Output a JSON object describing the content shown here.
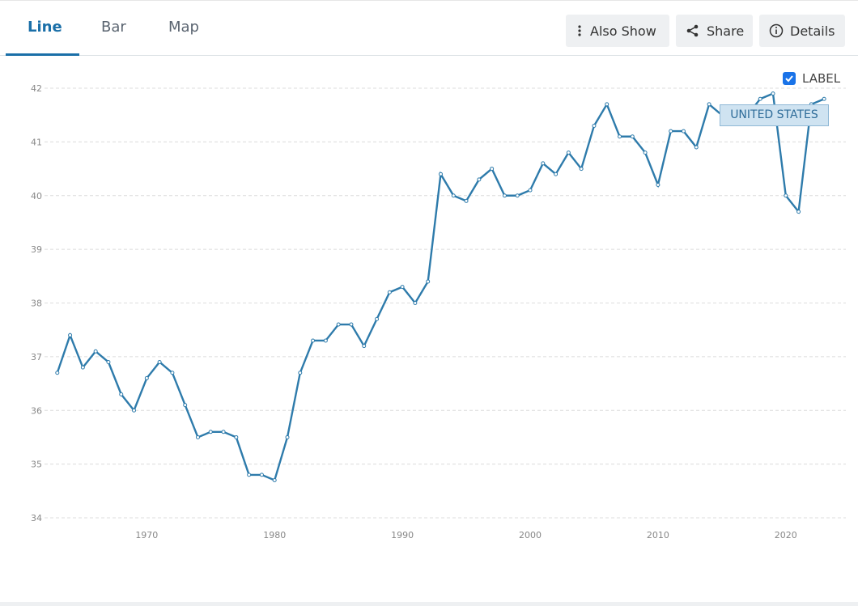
{
  "ui": {
    "tabs": [
      "Line",
      "Bar",
      "Map"
    ],
    "buttons": [
      "Also Show",
      "Share",
      "Details"
    ],
    "label_toggle": "LABEL"
  },
  "chart_data": {
    "type": "line",
    "x": [
      1963,
      1964,
      1965,
      1966,
      1967,
      1968,
      1969,
      1970,
      1971,
      1972,
      1973,
      1974,
      1975,
      1976,
      1977,
      1978,
      1979,
      1980,
      1981,
      1982,
      1983,
      1984,
      1985,
      1986,
      1987,
      1988,
      1989,
      1990,
      1991,
      1992,
      1993,
      1994,
      1995,
      1996,
      1997,
      1998,
      1999,
      2000,
      2001,
      2002,
      2003,
      2004,
      2005,
      2006,
      2007,
      2008,
      2009,
      2010,
      2011,
      2012,
      2013,
      2014,
      2015,
      2016,
      2017,
      2018,
      2019,
      2020,
      2021,
      2022,
      2023
    ],
    "series": [
      {
        "name": "UNITED STATES",
        "color": "#2e7bab",
        "values": [
          36.7,
          37.4,
          36.8,
          37.1,
          36.9,
          36.3,
          36.0,
          36.6,
          36.9,
          36.7,
          36.1,
          35.5,
          35.6,
          35.6,
          35.5,
          34.8,
          34.8,
          34.7,
          35.5,
          36.7,
          37.3,
          37.3,
          37.6,
          37.6,
          37.2,
          37.7,
          38.2,
          38.3,
          38.0,
          38.4,
          40.4,
          40.0,
          39.9,
          40.3,
          40.5,
          40.0,
          40.0,
          40.1,
          40.6,
          40.4,
          40.8,
          40.5,
          41.3,
          41.7,
          41.1,
          41.1,
          40.8,
          40.2,
          41.2,
          41.2,
          40.9,
          41.7,
          41.5,
          41.4,
          41.5,
          41.8,
          41.9,
          40.0,
          39.7,
          41.7,
          41.8
        ]
      }
    ],
    "xlim": [
      1962,
      2024.7
    ],
    "xticks": [
      1970,
      1980,
      1990,
      2000,
      2010,
      2020
    ],
    "ylim": [
      34,
      42
    ],
    "yticks": [
      34,
      35,
      36,
      37,
      38,
      39,
      40,
      41,
      42
    ],
    "grid": true
  }
}
